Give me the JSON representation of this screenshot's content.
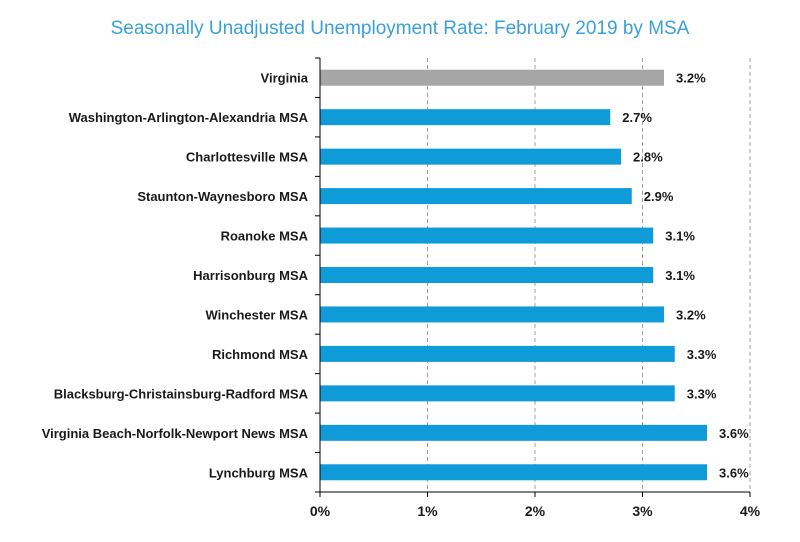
{
  "chart_data": {
    "type": "bar",
    "orientation": "horizontal",
    "title": "Seasonally Unadjusted Unemployment Rate:  February 2019 by MSA",
    "categories": [
      "Virginia",
      "Washington-Arlington-Alexandria MSA",
      "Charlottesville MSA",
      "Staunton-Waynesboro MSA",
      "Roanoke MSA",
      "Harrisonburg MSA",
      "Winchester MSA",
      "Richmond MSA",
      "Blacksburg-Christainsburg-Radford MSA",
      "Virginia Beach-Norfolk-Newport News MSA",
      "Lynchburg MSA"
    ],
    "values": [
      3.2,
      2.7,
      2.8,
      2.9,
      3.1,
      3.1,
      3.2,
      3.3,
      3.3,
      3.6,
      3.6
    ],
    "value_labels": [
      "3.2%",
      "2.7%",
      "2.8%",
      "2.9%",
      "3.1%",
      "3.1%",
      "3.2%",
      "3.3%",
      "3.3%",
      "3.6%",
      "3.6%"
    ],
    "xlim": [
      0,
      4
    ],
    "x_ticks": [
      0,
      1,
      2,
      3,
      4
    ],
    "x_tick_labels": [
      "0%",
      "1%",
      "2%",
      "3%",
      "4%"
    ],
    "xlabel": "",
    "ylabel": "",
    "grid": true,
    "legend": "none",
    "colors": {
      "highlight": "#a6a6a6",
      "default": "#0f9bd7",
      "grid": "#a0a0a0",
      "title": "#3aa0d8"
    }
  }
}
